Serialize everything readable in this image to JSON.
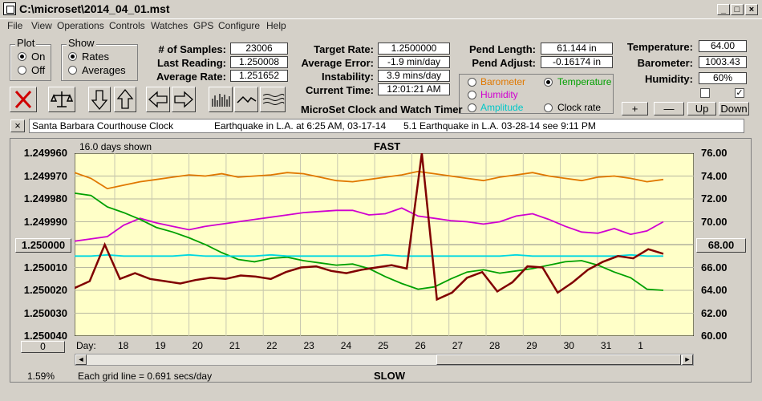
{
  "window": {
    "title": "C:\\microset\\2014_04_01.mst"
  },
  "menu": [
    "File",
    "View",
    "Operations",
    "Controls",
    "Watches",
    "GPS",
    "Configure",
    "Help"
  ],
  "plot_group": {
    "title": "Plot",
    "options": [
      "On",
      "Off"
    ],
    "selected": "On"
  },
  "show_group": {
    "title": "Show",
    "options": [
      "Rates",
      "Averages"
    ],
    "selected": "Rates"
  },
  "stats1": [
    {
      "label": "# of Samples:",
      "value": "23006"
    },
    {
      "label": "Last Reading:",
      "value": "1.250008"
    },
    {
      "label": "Average Rate:",
      "value": "1.251652"
    }
  ],
  "stats2": [
    {
      "label": "Target Rate:",
      "value": "1.2500000"
    },
    {
      "label": "Average Error:",
      "value": "-1.9 min/day"
    },
    {
      "label": "Instability:",
      "value": "3.9 mins/day"
    },
    {
      "label": "Current Time:",
      "value": "12:01:21 AM"
    }
  ],
  "stats3": [
    {
      "label": "Pend Length:",
      "value": "61.144 in"
    },
    {
      "label": "Pend Adjust:",
      "value": "-0.16174 in"
    }
  ],
  "app_name": "MicroSet Clock and Watch Timer",
  "sensor_select": {
    "options": [
      {
        "label": "Barometer",
        "color": "#e07800"
      },
      {
        "label": "Temperature",
        "color": "#00a000"
      },
      {
        "label": "Humidity",
        "color": "#d000d0"
      },
      {
        "label": "Amplitude",
        "color": "#00c8c8"
      },
      {
        "label": "Clock rate",
        "color": "#000000"
      }
    ],
    "selected": "Temperature"
  },
  "env": [
    {
      "label": "Temperature:",
      "value": "64.00"
    },
    {
      "label": "Barometer:",
      "value": "1003.43"
    },
    {
      "label": "Humidity:",
      "value": "60%"
    }
  ],
  "checkboxes": [
    false,
    true
  ],
  "adjust_buttons": [
    "+",
    "—",
    "Up",
    "Down"
  ],
  "note_bar": {
    "close": "×",
    "notes": [
      "Santa Barbara Courthouse Clock",
      "Earthquake in L.A. at 6:25 AM, 03-17-14",
      "5.1 Earthquake in L.A. 03-28-14  see 9:11 PM"
    ]
  },
  "chart_data": {
    "type": "line",
    "days_shown": "16.0 days shown",
    "top_label": "FAST",
    "bottom_label": "SLOW",
    "day_label": "Day:",
    "x_ticks": [
      "18",
      "19",
      "20",
      "21",
      "22",
      "23",
      "24",
      "25",
      "26",
      "27",
      "28",
      "29",
      "30",
      "31",
      "1"
    ],
    "left_ticks": [
      "1.249960",
      "1.249970",
      "1.249980",
      "1.249990",
      "1.250000",
      "1.250010",
      "1.250020",
      "1.250030",
      "1.250040"
    ],
    "left_button": "1.250000",
    "right_ticks": [
      "76.00",
      "74.00",
      "72.00",
      "70.00",
      "68.00",
      "66.00",
      "64.00",
      "62.00",
      "60.00"
    ],
    "right_button": "68.00",
    "grid_note": "Each grid line = 0.691 secs/day",
    "percent": "1.59%",
    "zero_button": "0",
    "grid": true,
    "series": [
      {
        "color": "#e07800",
        "values": [
          74.3,
          73.8,
          72.9,
          73.2,
          73.5,
          73.7,
          73.9,
          74.1,
          74.0,
          74.2,
          73.9,
          74.0,
          74.1,
          74.3,
          74.2,
          73.9,
          73.6,
          73.5,
          73.7,
          73.9,
          74.1,
          74.4,
          74.2,
          74.0,
          73.8,
          73.6,
          73.9,
          74.1,
          74.3,
          74.0,
          73.8,
          73.6,
          73.9,
          74.0,
          73.8,
          73.5,
          73.7
        ]
      },
      {
        "color": "#d000d0",
        "values": [
          68.3,
          68.5,
          68.7,
          69.7,
          70.3,
          69.9,
          69.6,
          69.3,
          69.6,
          69.8,
          70.0,
          70.2,
          70.4,
          70.6,
          70.8,
          70.9,
          71.0,
          71.0,
          70.6,
          70.7,
          71.2,
          70.5,
          70.3,
          70.1,
          70.0,
          69.8,
          70.0,
          70.5,
          70.7,
          70.2,
          69.6,
          69.1,
          69.0,
          69.4,
          68.9,
          69.2,
          70.0
        ]
      },
      {
        "color": "#00a000",
        "values": [
          72.5,
          72.3,
          71.3,
          70.8,
          70.2,
          69.5,
          69.1,
          68.6,
          68.0,
          67.3,
          66.7,
          66.5,
          66.8,
          66.9,
          66.6,
          66.4,
          66.2,
          66.3,
          65.9,
          65.2,
          64.6,
          64.1,
          64.3,
          65.0,
          65.6,
          65.8,
          65.5,
          65.7,
          65.9,
          66.2,
          66.5,
          66.6,
          66.2,
          65.6,
          65.1,
          64.1,
          64.0
        ]
      },
      {
        "color": "#00d8e0",
        "values": [
          67.0,
          67.0,
          67.1,
          67.0,
          67.0,
          67.0,
          67.0,
          67.1,
          67.0,
          67.0,
          67.0,
          67.0,
          67.1,
          67.0,
          67.0,
          67.0,
          67.0,
          67.0,
          67.0,
          67.1,
          67.0,
          67.0,
          67.0,
          67.0,
          67.0,
          67.0,
          67.0,
          67.1,
          67.0,
          67.0,
          67.0,
          67.0,
          67.0,
          67.0,
          67.1,
          67.0,
          67.0
        ]
      },
      {
        "color": "#800000",
        "values": [
          64.2,
          64.8,
          68.0,
          65.0,
          65.5,
          65.0,
          64.8,
          64.6,
          64.9,
          65.1,
          65.0,
          65.3,
          65.2,
          65.0,
          65.6,
          66.0,
          66.1,
          65.7,
          65.5,
          65.8,
          66.0,
          66.2,
          65.9,
          78.0,
          63.2,
          63.8,
          65.1,
          65.6,
          63.9,
          64.7,
          66.1,
          66.0,
          63.8,
          64.7,
          65.8,
          66.5,
          67.0,
          66.8,
          67.6,
          67.2
        ]
      }
    ],
    "right_range": [
      60,
      76
    ]
  },
  "controls": {
    "scroll_left": "◄",
    "scroll_right": "►"
  }
}
